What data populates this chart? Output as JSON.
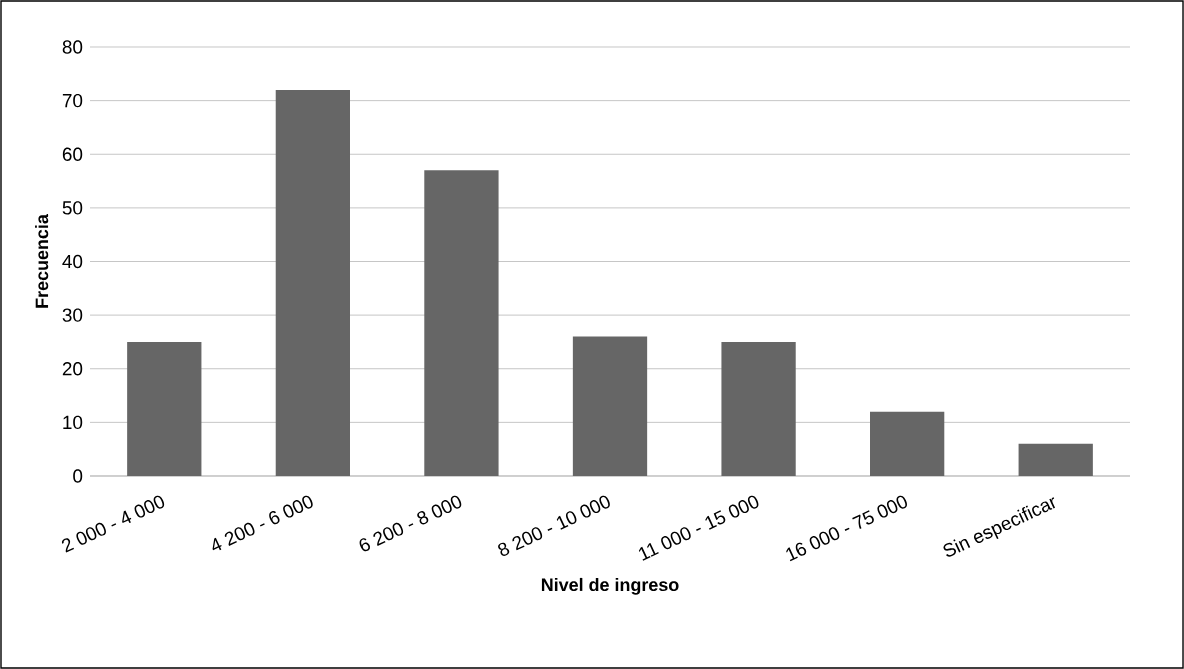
{
  "chart_data": {
    "type": "bar",
    "xlabel": "Nivel de ingreso",
    "ylabel": "Frecuencia",
    "categories": [
      "2 000 - 4 000",
      "4 200 - 6 000",
      "6 200 - 8 000",
      "8 200 - 10 000",
      "11 000 - 15 000",
      "16 000 - 75 000",
      "Sin especificar"
    ],
    "values": [
      25,
      72,
      57,
      26,
      25,
      12,
      6
    ],
    "color": "#666666",
    "ylim": [
      0,
      80
    ],
    "yticks": [
      0,
      10,
      20,
      30,
      40,
      50,
      60,
      70,
      80
    ],
    "grid": "y"
  }
}
